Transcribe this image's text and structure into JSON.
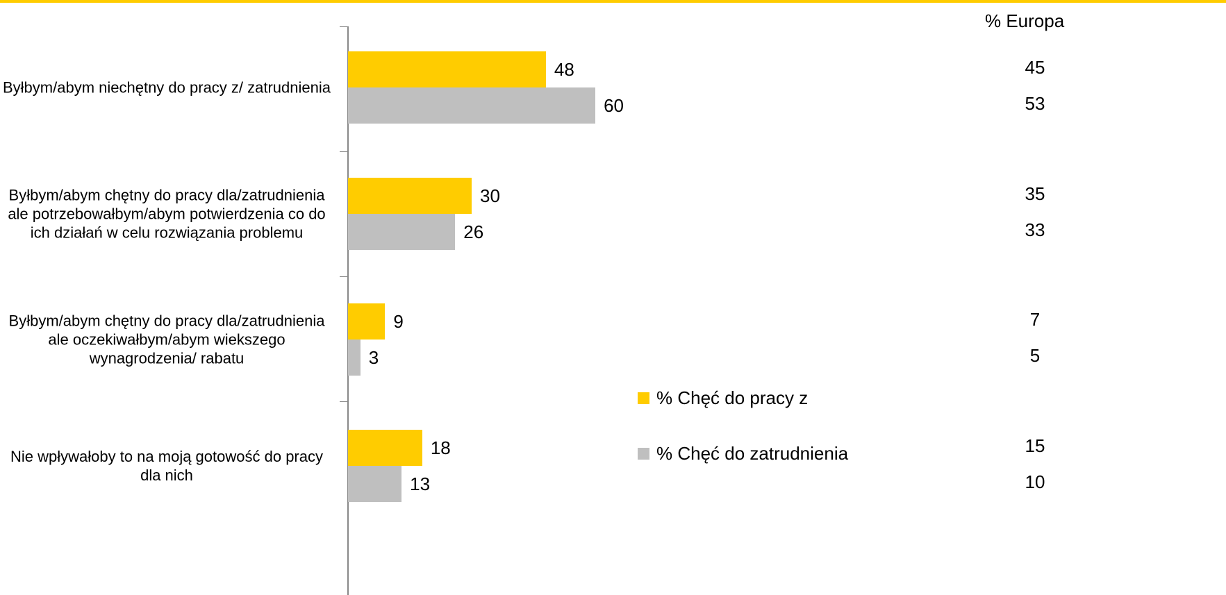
{
  "chart_data": {
    "type": "bar",
    "orientation": "horizontal",
    "categories": [
      "Byłbym/abym niechętny do pracy z/ zatrudnienia",
      "Byłbym/abym chętny do pracy dla/zatrudnienia ale potrzebowałbym/abym potwierdzenia co do ich działań w celu rozwiązania problemu",
      "Byłbym/abym chętny do pracy dla/zatrudnienia ale oczekiwałbym/abym wiekszego wynagrodzenia/ rabatu",
      "Nie wpływałoby to na moją gotowość do pracy dla nich"
    ],
    "series": [
      {
        "name": "% Chęć do pracy z",
        "color": "#FFCC00",
        "values": [
          48,
          30,
          9,
          18
        ],
        "europe_values": [
          45,
          35,
          7,
          15
        ]
      },
      {
        "name": "% Chęć do zatrudnienia",
        "color": "#BFBFBF",
        "values": [
          60,
          26,
          3,
          13
        ],
        "europe_values": [
          53,
          33,
          5,
          10
        ]
      }
    ],
    "europe_title": "% Europa",
    "accent_color": "#FFCC00"
  }
}
